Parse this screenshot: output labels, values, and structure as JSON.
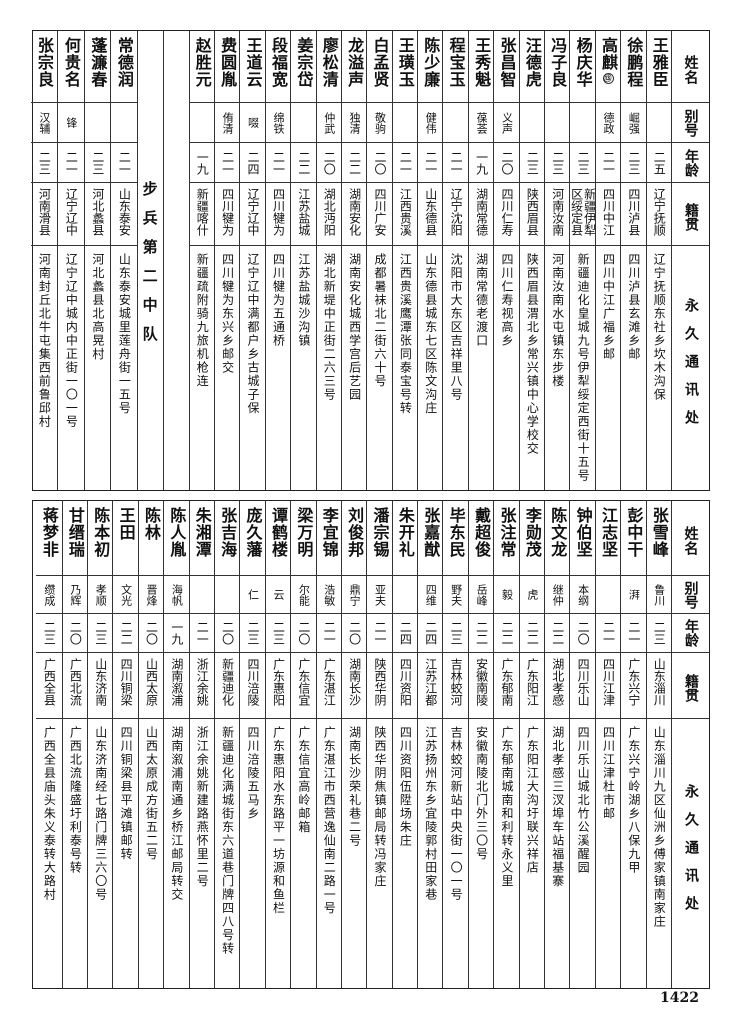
{
  "headers": {
    "name": "姓名",
    "alias": "别号",
    "age": "年龄",
    "native": "籍贯",
    "address": "永久通讯处"
  },
  "top_section_label": "步兵第二中队",
  "top_rows": [
    {
      "name": "王雅臣",
      "alias": "",
      "age": "二五",
      "native": "辽宁抚顺",
      "address": "辽宁抚顺东社乡坎木沟保"
    },
    {
      "name": "徐鹏程",
      "alias": "崛强",
      "age": "二三",
      "native": "四川泸县",
      "address": "四川泸县玄滩乡邮"
    },
    {
      "name": "高麒",
      "note": "⑬",
      "alias": "德政",
      "age": "二一",
      "native": "四川中江",
      "address": "四川中江广福乡邮"
    },
    {
      "name": "杨庆华",
      "alias": "",
      "age": "二三",
      "native": "新疆伊犁区绥定县",
      "address": "新疆迪化皇城九号伊犁绥定西街十五号"
    },
    {
      "name": "冯子良",
      "alias": "",
      "age": "二三",
      "native": "河南汝南",
      "address": "河南汝南水屯镇东步楼"
    },
    {
      "name": "汪德虎",
      "alias": "",
      "age": "二三",
      "native": "陕西眉县",
      "address": "陕西眉县渭北乡常兴镇中心学校交"
    },
    {
      "name": "张昌智",
      "alias": "义声",
      "age": "二〇",
      "native": "四川仁寿",
      "address": "四川仁寿视高乡"
    },
    {
      "name": "王秀魁",
      "alias": "葆荟",
      "age": "一九",
      "native": "湖南常德",
      "address": "湖南常德老渡口"
    },
    {
      "name": "程宝玉",
      "alias": "",
      "age": "二一",
      "native": "辽宁沈阳",
      "address": "沈阳市大东区吉祥里八号"
    },
    {
      "name": "陈少廉",
      "alias": "健伟",
      "age": "二一",
      "native": "山东德县",
      "address": "山东德县城东七区陈文沟庄"
    },
    {
      "name": "王璜玉",
      "alias": "",
      "age": "二一",
      "native": "江西贵溪",
      "address": "江西贵溪鹰潭张同泰宝号转"
    },
    {
      "name": "白孟贤",
      "alias": "敬驹",
      "age": "二〇",
      "native": "四川广安",
      "address": "成都暑袜北二街六十号"
    },
    {
      "name": "龙溢声",
      "alias": "独清",
      "age": "二二",
      "native": "湖南安化",
      "address": "湖南安化城西学宫后艺园"
    },
    {
      "name": "廖松清",
      "alias": "仲武",
      "age": "二〇",
      "native": "湖北沔阳",
      "address": "湖北新堤中正街二六三号"
    },
    {
      "name": "姜宗岱",
      "alias": "",
      "age": "二二",
      "native": "江苏盐城",
      "address": "江苏盐城沙沟镇"
    },
    {
      "name": "段福宽",
      "alias": "绵铁",
      "age": "二一",
      "native": "四川犍为",
      "address": "四川犍为五通桥"
    },
    {
      "name": "王道云",
      "alias": "啜",
      "age": "二四",
      "native": "辽宁辽中",
      "address": "辽宁辽中满都户乡古城子保"
    },
    {
      "name": "费圆胤",
      "alias": "侑清",
      "age": "二一",
      "native": "四川犍为",
      "address": "四川犍为东兴乡邮交"
    },
    {
      "name": "赵胜元",
      "alias": "",
      "age": "一九",
      "native": "新疆喀什",
      "address": "新疆疏附骑九旅机枪连"
    }
  ],
  "top_rows_after_section": [
    {
      "name": "常德润",
      "alias": "",
      "age": "二一",
      "native": "山东泰安",
      "address": "山东泰安城里莲舟街一五号"
    },
    {
      "name": "蓬濂春",
      "alias": "",
      "age": "二三",
      "native": "河北蠡县",
      "address": "河北蠡县北高晃村"
    },
    {
      "name": "何贵名",
      "alias": "锋",
      "age": "二一",
      "native": "辽宁辽中",
      "address": "辽宁辽中城内中正街一〇一号"
    },
    {
      "name": "张宗良",
      "alias": "汉辅",
      "age": "二三",
      "native": "河南滑县",
      "address": "河南封丘北牛屯集西前鲁邱村"
    }
  ],
  "bottom_rows": [
    {
      "name": "张雪峰",
      "alias": "鲁川",
      "age": "二三",
      "native": "山东淄川",
      "address": "山东淄川九区仙洲乡傅家镇南家庄"
    },
    {
      "name": "彭中干",
      "alias": "湃",
      "age": "二一",
      "native": "广东兴宁",
      "address": "广东兴宁岭湖乡八保九甲"
    },
    {
      "name": "江志坚",
      "alias": "",
      "age": "二一",
      "native": "四川江津",
      "address": "四川江津杜市邮"
    },
    {
      "name": "钟伯坚",
      "alias": "本纲",
      "age": "二〇",
      "native": "四川乐山",
      "address": "四川乐山城北竹公溪醒园"
    },
    {
      "name": "陈文龙",
      "alias": "继仲",
      "age": "二二",
      "native": "湖北孝感",
      "address": "湖北孝感三汊埠车站福基寨"
    },
    {
      "name": "李勋茂",
      "alias": "虎",
      "age": "二二",
      "native": "广东阳江",
      "address": "广东阳江大沟圩联兴祥店"
    },
    {
      "name": "张注常",
      "alias": "毅",
      "age": "二二",
      "native": "广东郁南",
      "address": "广东郁南城南和利转永义里"
    },
    {
      "name": "戴超俊",
      "alias": "岳峰",
      "age": "二二",
      "native": "安徽南陵",
      "address": "安徽南陵北门外三〇号"
    },
    {
      "name": "毕东民",
      "alias": "野夫",
      "age": "二三",
      "native": "吉林蛟河",
      "address": "吉林蛟河新站中央街一〇一号"
    },
    {
      "name": "张嘉猷",
      "alias": "四维",
      "age": "二四",
      "native": "江苏江都",
      "address": "江苏扬州东乡宜陵郭村田家巷"
    },
    {
      "name": "朱开礼",
      "alias": "",
      "age": "二四",
      "native": "四川资阳",
      "address": "四川资阳伍陞场朱庄"
    },
    {
      "name": "潘宗锡",
      "alias": "亚夫",
      "age": "二一",
      "native": "陕西华阴",
      "address": "陕西华阴焦镇邮局转冯家庄"
    },
    {
      "name": "刘俊邦",
      "alias": "鼎宁",
      "age": "二〇",
      "native": "湖南长沙",
      "address": "湖南长沙荣礼巷二号"
    },
    {
      "name": "李宜锦",
      "alias": "浩敏",
      "age": "二一",
      "native": "广东湛江",
      "address": "广东湛江市西营逸仙南二路一号"
    },
    {
      "name": "梁万明",
      "alias": "尔能",
      "age": "二〇",
      "native": "广东信宜",
      "address": "广东信宜高岭邮箱"
    },
    {
      "name": "谭鹤楼",
      "alias": "云",
      "age": "二三",
      "native": "广东惠阳",
      "address": "广东惠阳水东路平一坊源和鱼栏"
    },
    {
      "name": "庞久藩",
      "alias": "仁",
      "age": "二三",
      "native": "四川涪陵",
      "address": "四川涪陵五马乡"
    },
    {
      "name": "张吉海",
      "alias": "",
      "age": "二〇",
      "native": "新疆迪化",
      "address": "新疆迪化满城街东六道巷门牌四八号转"
    },
    {
      "name": "朱湘潭",
      "alias": "",
      "age": "二一",
      "native": "浙江余姚",
      "address": "浙江余姚新建路燕怀里二号"
    },
    {
      "name": "陈人胤",
      "alias": "海帆",
      "age": "一九",
      "native": "湖南溆浦",
      "address": "湖南溆浦南通乡桥江邮局转交"
    },
    {
      "name": "陈林",
      "alias": "晋烽",
      "age": "二〇",
      "native": "山西太原",
      "address": "山西太原成方街五二号"
    },
    {
      "name": "王田",
      "alias": "文光",
      "age": "二二",
      "native": "四川铜梁",
      "address": "四川铜梁县平滩镇邮转"
    },
    {
      "name": "陈本初",
      "alias": "孝顺",
      "age": "二三",
      "native": "山东济南",
      "address": "山东济南经七路门牌三六〇号"
    },
    {
      "name": "甘缙瑞",
      "alias": "乃辉",
      "age": "二〇",
      "native": "广西北流",
      "address": "广西北流隆盛圩利泰号转"
    },
    {
      "name": "蒋梦非",
      "alias": "缵成",
      "age": "二三",
      "native": "广西全县",
      "address": "广西全县庙头朱义泰转大路村"
    }
  ],
  "page_number": "1422"
}
